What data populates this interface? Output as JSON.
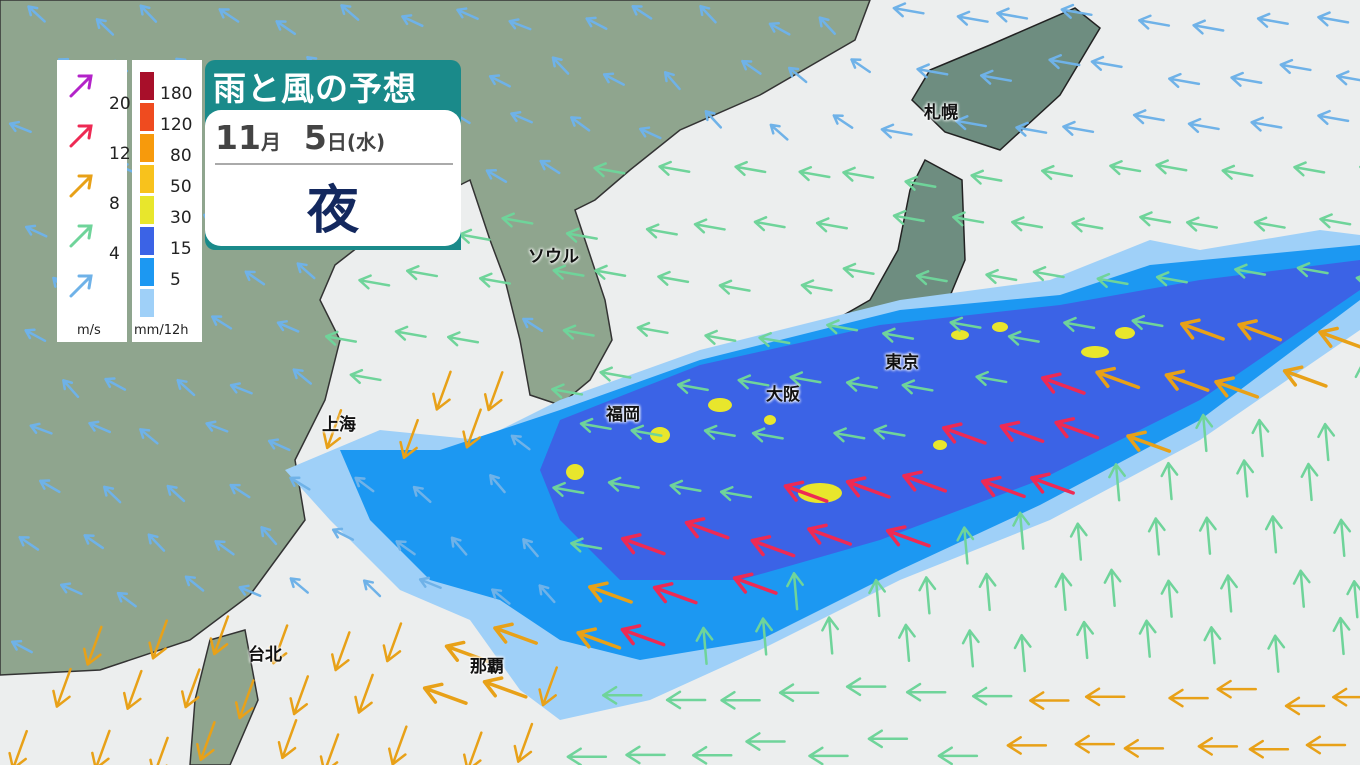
{
  "title": "雨と風の予想",
  "date": {
    "month": "11",
    "month_unit": "月",
    "day": "5",
    "day_unit": "日",
    "weekday": "(水)"
  },
  "period": "夜",
  "wind_legend": {
    "unit": "m/s",
    "items": [
      {
        "value": "20",
        "color": "#b323c9"
      },
      {
        "value": "12",
        "color": "#ee2a54"
      },
      {
        "value": "8",
        "color": "#e8a118"
      },
      {
        "value": "4",
        "color": "#6fd49a"
      },
      {
        "value": "",
        "color": "#6fb2e8"
      }
    ]
  },
  "rain_legend": {
    "unit": "mm/12h",
    "items": [
      {
        "value": "180",
        "color": "#a80f2a"
      },
      {
        "value": "120",
        "color": "#ef4b1f"
      },
      {
        "value": "80",
        "color": "#f79a0c"
      },
      {
        "value": "50",
        "color": "#f8c21c"
      },
      {
        "value": "30",
        "color": "#e8e62c"
      },
      {
        "value": "15",
        "color": "#3b63e6"
      },
      {
        "value": "5",
        "color": "#1c98f2"
      },
      {
        "value": "",
        "color": "#9fd0f8"
      }
    ]
  },
  "cities": {
    "sapporo": "札幌",
    "seoul": "ソウル",
    "tokyo": "東京",
    "osaka": "大阪",
    "fukuoka": "福岡",
    "shanghai": "上海",
    "taipei": "台北",
    "naha": "那覇"
  },
  "colors": {
    "sea": "#eceeee",
    "land": "#8fa58e",
    "japan_land": "#6e8d80"
  }
}
